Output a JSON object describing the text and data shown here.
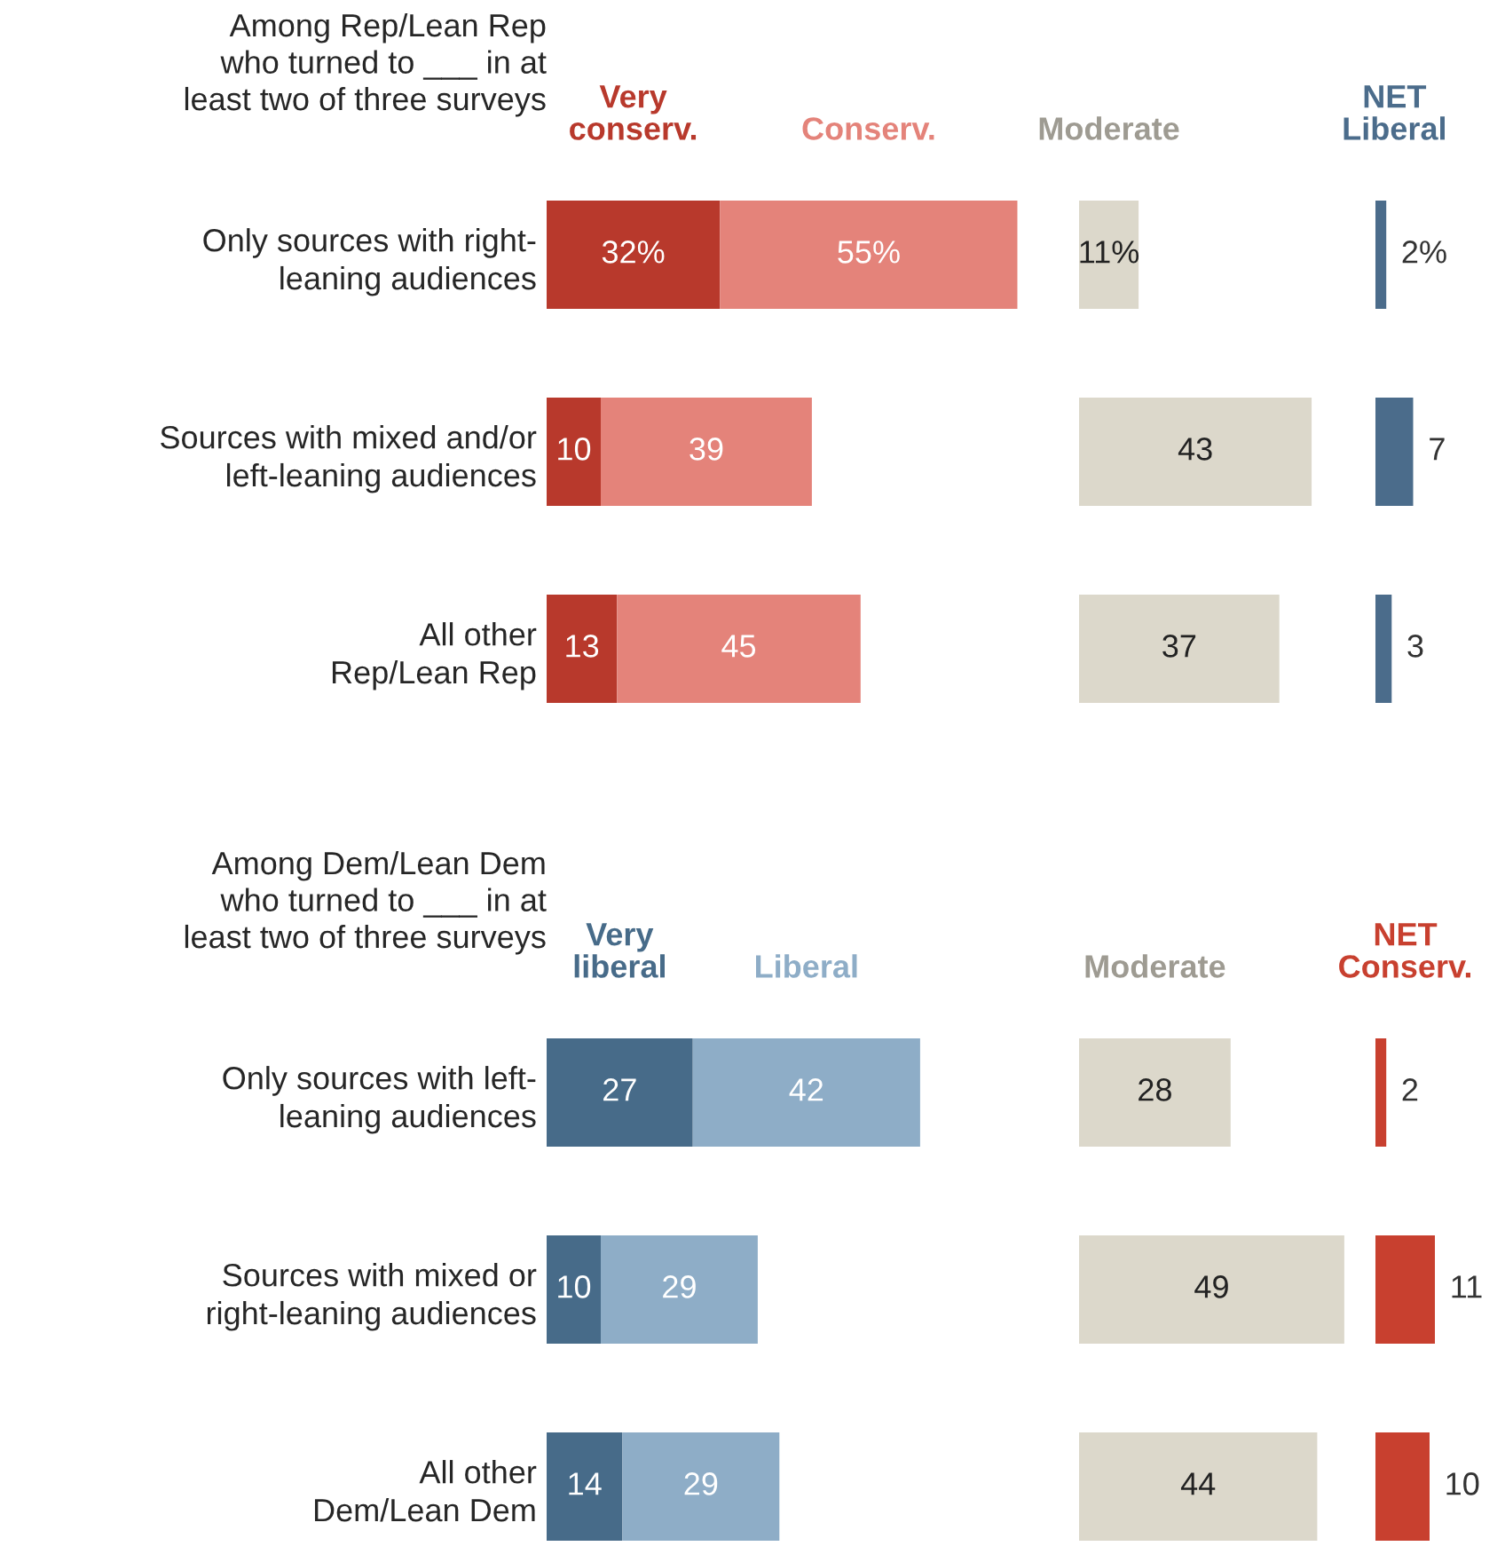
{
  "chart_data": [
    {
      "type": "bar",
      "orientation": "horizontal",
      "stacked": true,
      "tick_labels": "y",
      "title": "Among Rep/Lean Rep\nwho turned to ___ in at\nleast two of three surveys",
      "categories": [
        "Only sources with right-\nleaning audiences",
        "Sources with mixed and/or\nleft-leaning audiences",
        "All other\nRep/Lean Rep"
      ],
      "series": [
        {
          "name": "Very\nconserv.",
          "color": "#b8392c",
          "values": [
            32,
            10,
            13
          ],
          "value_labels": [
            "32%",
            "10",
            "13"
          ]
        },
        {
          "name": "Conserv.",
          "color": "#e4837a",
          "values": [
            55,
            39,
            45
          ],
          "value_labels": [
            "55%",
            "39",
            "45"
          ]
        }
      ]
    },
    {
      "type": "bar",
      "orientation": "horizontal",
      "tick_labels": false,
      "categories": [
        null,
        null,
        null
      ],
      "series": [
        {
          "name": "Moderate",
          "color": "#dcd8cb",
          "values": [
            11,
            43,
            37
          ],
          "value_labels": [
            "11%",
            "43",
            "37"
          ]
        }
      ]
    },
    {
      "type": "bar",
      "orientation": "horizontal",
      "tick_labels": false,
      "categories": [
        null,
        null,
        null
      ],
      "series": [
        {
          "name": "NET\nLiberal",
          "color": "#4b6c8b",
          "values": [
            2,
            7,
            3
          ],
          "value_labels": [
            "2%",
            "7",
            "3"
          ]
        }
      ]
    },
    {
      "type": "bar",
      "orientation": "horizontal",
      "stacked": true,
      "tick_labels": "y",
      "title": "Among Dem/Lean Dem\nwho turned to ___ in at\nleast two of three surveys",
      "categories": [
        "Only sources with left-\nleaning audiences",
        "Sources with mixed or\nright-leaning audiences",
        "All other\nDem/Lean Dem"
      ],
      "series": [
        {
          "name": "Very\nliberal",
          "color": "#476b89",
          "values": [
            27,
            10,
            14
          ],
          "value_labels": [
            "27",
            "10",
            "14"
          ]
        },
        {
          "name": "Liberal",
          "color": "#8eadc7",
          "values": [
            42,
            29,
            29
          ],
          "value_labels": [
            "42",
            "29",
            "29"
          ]
        }
      ]
    },
    {
      "type": "bar",
      "orientation": "horizontal",
      "tick_labels": false,
      "categories": [
        null,
        null,
        null
      ],
      "series": [
        {
          "name": "Moderate",
          "color": "#dcd8cb",
          "values": [
            28,
            49,
            44
          ],
          "value_labels": [
            "28",
            "49",
            "44"
          ]
        }
      ]
    },
    {
      "type": "bar",
      "orientation": "horizontal",
      "tick_labels": false,
      "categories": [
        null,
        null,
        null
      ],
      "series": [
        {
          "name": "NET\nConserv.",
          "color": "#c8402f",
          "values": [
            2,
            11,
            10
          ],
          "value_labels": [
            "2",
            "11",
            "10"
          ]
        }
      ]
    }
  ]
}
